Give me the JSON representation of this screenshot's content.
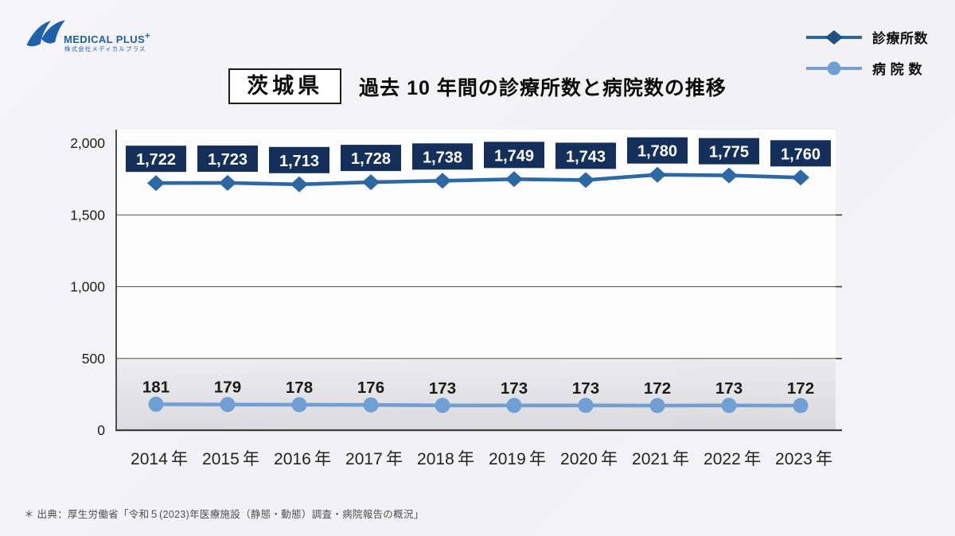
{
  "logo": {
    "brand": "MEDICAL PLUS",
    "plus": "+",
    "company": "株式会社メディカルプラス",
    "color": "#1e5fae"
  },
  "legend": {
    "items": [
      {
        "label": "診療所数",
        "marker": "diamond",
        "marker_color": "#1f5181",
        "line_color": "#2a66a0"
      },
      {
        "label": "病 院 数",
        "marker": "circle",
        "marker_color": "#6f9fd5",
        "line_color": "#6f9fd5"
      }
    ]
  },
  "header": {
    "prefecture": "茨城県"
  },
  "chart_data": {
    "type": "line",
    "title": "過去 10 年間の診療所数と病院数の推移",
    "categories": [
      "2014",
      "2015",
      "2016",
      "2017",
      "2018",
      "2019",
      "2020",
      "2021",
      "2022",
      "2023"
    ],
    "x_suffix": "年",
    "series": [
      {
        "name": "診療所数",
        "values": [
          1722,
          1723,
          1713,
          1728,
          1738,
          1749,
          1743,
          1780,
          1775,
          1760
        ],
        "color": "#2b68a4",
        "marker": "diamond",
        "label_style": "box",
        "label_box_color": "#14305a",
        "label_text_color": "#ffffff"
      },
      {
        "name": "病院数",
        "values": [
          181,
          179,
          178,
          176,
          173,
          173,
          173,
          172,
          173,
          172
        ],
        "color": "#6f9fd5",
        "marker": "circle",
        "label_style": "plain",
        "label_text_color": "#1a1a1a"
      }
    ],
    "ylim": [
      0,
      2000
    ],
    "yticks": [
      0,
      500,
      1000,
      1500,
      2000
    ],
    "grid": "horizontal",
    "legend_position": "top-right",
    "band": {
      "from": 0,
      "to": 500,
      "color_top": "#ededef",
      "color_bottom": "#dbdbde"
    },
    "axis_color": "#3d3d3d",
    "grid_color": "#555555",
    "tick_text_color": "#1d1d1d"
  },
  "footer": {
    "source": "＊ 出典：厚生労働省「令和５(2023)年医療施設（静態・動態）調査・病院報告の概況」"
  }
}
